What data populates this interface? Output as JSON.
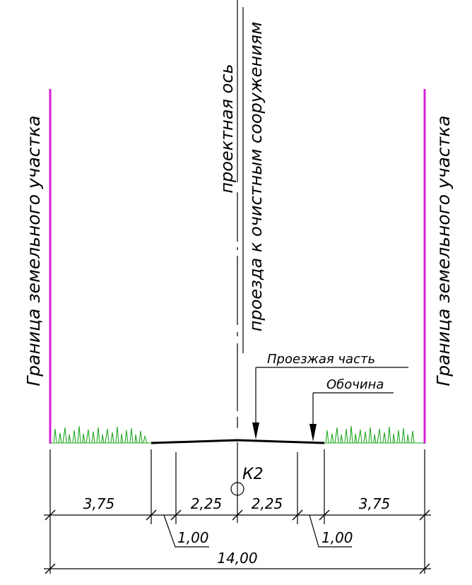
{
  "labels": {
    "boundary_left": "Граница земельного участка",
    "boundary_right": "Граница земельного участка",
    "axis_line1": "проектная ось",
    "axis_line2": "проезда к очистным сооружениям",
    "carriageway": "Проезжая часть",
    "shoulder": "Обочина",
    "point": "К2"
  },
  "dimensions": {
    "left_verge": "3,75",
    "left_lane": "2,25",
    "right_lane": "2,25",
    "right_verge": "3,75",
    "left_shoulder": "1,00",
    "right_shoulder": "1,00",
    "total": "14,00"
  },
  "colors": {
    "boundary": "#d81fd8",
    "grass": "#22a822",
    "lines": "#000000"
  }
}
